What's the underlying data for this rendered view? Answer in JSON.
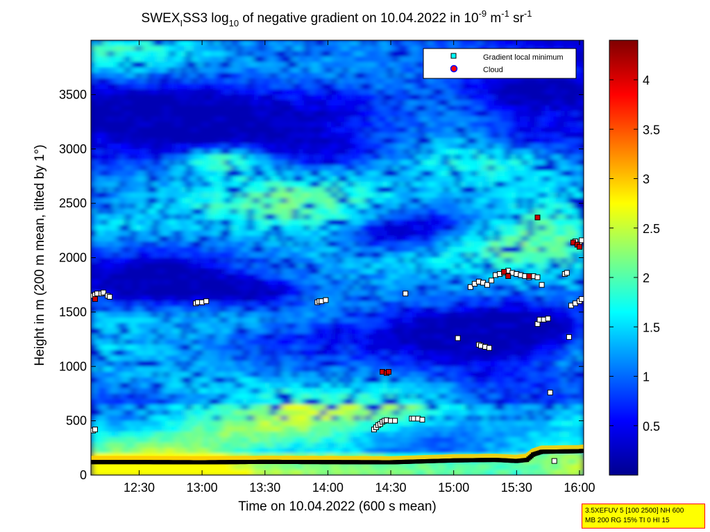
{
  "figure": {
    "title": "SWEX",
    "title_sub": "I",
    "title_rest": "SS3 log",
    "title_log_sub": "10",
    "title_tail": " of negative gradient on 10.04.2022 in 10",
    "unit_exp1": "-9",
    "unit_m": " m",
    "unit_exp2": "-1",
    "unit_sr": " sr",
    "unit_exp3": "-1",
    "info_line1": "3.5XEFUV 5 [100 2500] NH 600",
    "info_line2": "MB 200 RG 15% TI 0 HI 15"
  },
  "chart_data": {
    "type": "heatmap",
    "xlabel": "Time on 10.04.2022 (600 s mean)",
    "ylabel": "Height in m (200 m mean, tilted by 1°)",
    "x_range": [
      "12:07",
      "16:02"
    ],
    "y_range": [
      0,
      4000
    ],
    "x_ticks": [
      "12:30",
      "13:00",
      "13:30",
      "14:00",
      "14:30",
      "15:00",
      "15:30",
      "16:00"
    ],
    "y_ticks": [
      0,
      500,
      1000,
      1500,
      2000,
      2500,
      3000,
      3500
    ],
    "colorbar": {
      "range": [
        0.0,
        4.4
      ],
      "ticks": [
        "0.5",
        "1",
        "1.5",
        "2",
        "2.5",
        "3",
        "3.5",
        "4"
      ],
      "colormap": "jet"
    },
    "legend": {
      "placement": "top-right",
      "entries": [
        {
          "label": "Gradient local minimum",
          "marker": "square",
          "color": "#00ffff"
        },
        {
          "label": "Cloud",
          "marker": "circle",
          "color": "#ff0000"
        }
      ]
    },
    "gradient_minima": [
      {
        "x": "12:08",
        "y": 410
      },
      {
        "x": "12:09",
        "y": 420
      },
      {
        "x": "12:08",
        "y": 1650
      },
      {
        "x": "12:09",
        "y": 1660
      },
      {
        "x": "12:10",
        "y": 1670
      },
      {
        "x": "12:12",
        "y": 1670
      },
      {
        "x": "12:13",
        "y": 1680
      },
      {
        "x": "12:15",
        "y": 1650
      },
      {
        "x": "12:16",
        "y": 1640
      },
      {
        "x": "12:57",
        "y": 1580
      },
      {
        "x": "12:58",
        "y": 1590
      },
      {
        "x": "13:00",
        "y": 1590
      },
      {
        "x": "13:02",
        "y": 1600
      },
      {
        "x": "13:55",
        "y": 1590
      },
      {
        "x": "13:56",
        "y": 1600
      },
      {
        "x": "13:57",
        "y": 1600
      },
      {
        "x": "13:59",
        "y": 1610
      },
      {
        "x": "14:22",
        "y": 420
      },
      {
        "x": "14:23",
        "y": 440
      },
      {
        "x": "14:24",
        "y": 460
      },
      {
        "x": "14:25",
        "y": 470
      },
      {
        "x": "14:26",
        "y": 490
      },
      {
        "x": "14:27",
        "y": 500
      },
      {
        "x": "14:28",
        "y": 505
      },
      {
        "x": "14:30",
        "y": 500
      },
      {
        "x": "14:32",
        "y": 500
      },
      {
        "x": "14:37",
        "y": 1670
      },
      {
        "x": "14:40",
        "y": 520
      },
      {
        "x": "14:41",
        "y": 520
      },
      {
        "x": "14:43",
        "y": 520
      },
      {
        "x": "14:45",
        "y": 510
      },
      {
        "x": "15:02",
        "y": 1260
      },
      {
        "x": "15:12",
        "y": 1200
      },
      {
        "x": "15:13",
        "y": 1190
      },
      {
        "x": "15:15",
        "y": 1180
      },
      {
        "x": "15:17",
        "y": 1170
      },
      {
        "x": "15:08",
        "y": 1730
      },
      {
        "x": "15:10",
        "y": 1760
      },
      {
        "x": "15:12",
        "y": 1780
      },
      {
        "x": "15:14",
        "y": 1770
      },
      {
        "x": "15:16",
        "y": 1750
      },
      {
        "x": "15:18",
        "y": 1790
      },
      {
        "x": "15:20",
        "y": 1840
      },
      {
        "x": "15:22",
        "y": 1850
      },
      {
        "x": "15:24",
        "y": 1860
      },
      {
        "x": "15:26",
        "y": 1880
      },
      {
        "x": "15:28",
        "y": 1860
      },
      {
        "x": "15:30",
        "y": 1850
      },
      {
        "x": "15:32",
        "y": 1840
      },
      {
        "x": "15:34",
        "y": 1830
      },
      {
        "x": "15:36",
        "y": 1820
      },
      {
        "x": "15:38",
        "y": 1830
      },
      {
        "x": "15:40",
        "y": 1820
      },
      {
        "x": "15:42",
        "y": 1750
      },
      {
        "x": "15:40",
        "y": 1390
      },
      {
        "x": "15:41",
        "y": 1430
      },
      {
        "x": "15:43",
        "y": 1430
      },
      {
        "x": "15:45",
        "y": 1440
      },
      {
        "x": "15:46",
        "y": 760
      },
      {
        "x": "15:48",
        "y": 130
      },
      {
        "x": "15:53",
        "y": 1850
      },
      {
        "x": "15:54",
        "y": 1860
      },
      {
        "x": "15:55",
        "y": 1270
      },
      {
        "x": "15:56",
        "y": 1560
      },
      {
        "x": "15:58",
        "y": 1580
      },
      {
        "x": "16:00",
        "y": 1600
      },
      {
        "x": "16:01",
        "y": 1620
      },
      {
        "x": "15:58",
        "y": 2150
      },
      {
        "x": "16:00",
        "y": 2120
      },
      {
        "x": "16:01",
        "y": 2160
      }
    ],
    "clouds": [
      {
        "x": "12:09",
        "y": 1620
      },
      {
        "x": "14:26",
        "y": 950
      },
      {
        "x": "14:28",
        "y": 940
      },
      {
        "x": "14:29",
        "y": 950
      },
      {
        "x": "15:24",
        "y": 1870
      },
      {
        "x": "15:26",
        "y": 1830
      },
      {
        "x": "15:36",
        "y": 1830
      },
      {
        "x": "15:40",
        "y": 2370
      },
      {
        "x": "15:57",
        "y": 2140
      },
      {
        "x": "15:59",
        "y": 2120
      },
      {
        "x": "16:00",
        "y": 2100
      }
    ],
    "boundary_layer_line": [
      {
        "x": "12:07",
        "y": 120
      },
      {
        "x": "12:30",
        "y": 120
      },
      {
        "x": "13:00",
        "y": 118
      },
      {
        "x": "13:30",
        "y": 122
      },
      {
        "x": "14:00",
        "y": 120
      },
      {
        "x": "14:30",
        "y": 118
      },
      {
        "x": "15:00",
        "y": 135
      },
      {
        "x": "15:20",
        "y": 140
      },
      {
        "x": "15:30",
        "y": 130
      },
      {
        "x": "15:35",
        "y": 140
      },
      {
        "x": "15:38",
        "y": 190
      },
      {
        "x": "15:42",
        "y": 215
      },
      {
        "x": "16:00",
        "y": 220
      },
      {
        "x": "16:02",
        "y": 225
      }
    ]
  }
}
